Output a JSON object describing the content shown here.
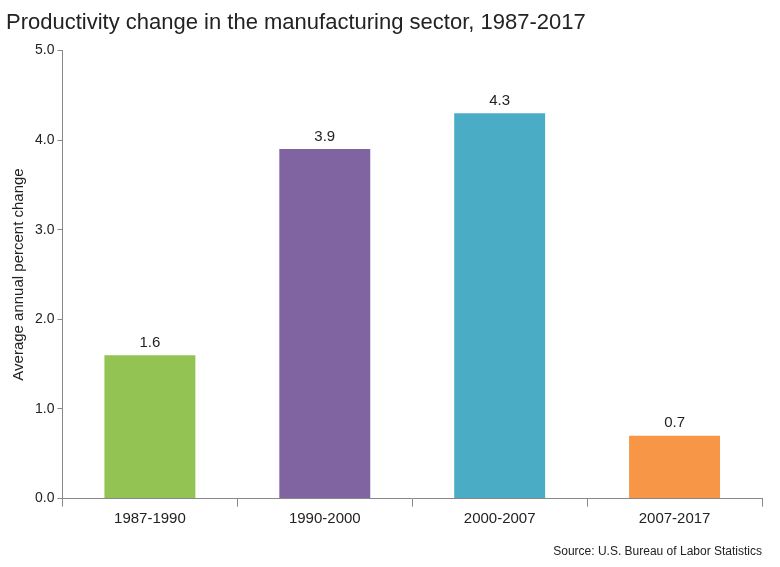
{
  "chart_data": {
    "type": "bar",
    "title": "Productivity change in the manufacturing sector, 1987-2017",
    "y_label": "Average annual percent change",
    "source": "Source: U.S. Bureau of Labor Statistics",
    "categories": [
      "1987-1990",
      "1990-2000",
      "2000-2007",
      "2007-2017"
    ],
    "values": [
      1.6,
      3.9,
      4.3,
      0.7
    ],
    "colors": [
      "#92c353",
      "#8064a2",
      "#4bacc6",
      "#f79646"
    ],
    "ylim": [
      0,
      5
    ],
    "yticks": [
      {
        "value": 0,
        "label": "0.0"
      },
      {
        "value": 1,
        "label": "1.0"
      },
      {
        "value": 2,
        "label": "2.0"
      },
      {
        "value": 3,
        "label": "3.0"
      },
      {
        "value": 4,
        "label": "4.0"
      },
      {
        "value": 5,
        "label": "5.0"
      }
    ],
    "grid": false,
    "data_labels": true
  }
}
